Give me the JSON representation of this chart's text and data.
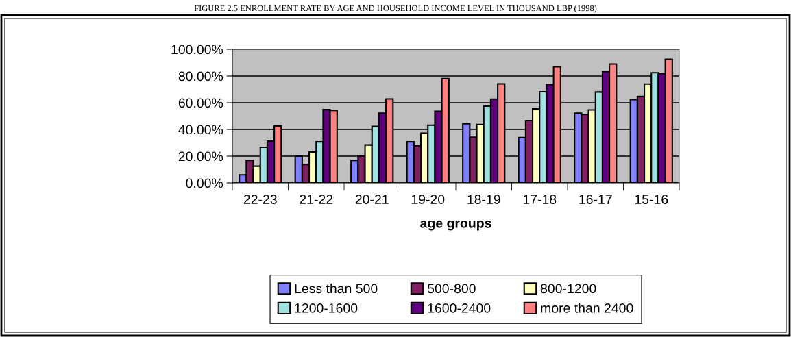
{
  "chart_data": {
    "type": "bar",
    "title": "FIGURE 2.5 ENROLLMENT RATE BY AGE AND HOUSEHOLD INCOME LEVEL IN THOUSAND LBP (1998)",
    "xlabel": "age groups",
    "categories": [
      "22-23",
      "21-22",
      "20-21",
      "19-20",
      "18-19",
      "17-18",
      "16-17",
      "15-16"
    ],
    "series": [
      {
        "name": "Less than 500",
        "color": "#8080ff",
        "values": [
          6.0,
          20.0,
          16.8,
          30.7,
          44.3,
          33.9,
          52.1,
          62.3
        ]
      },
      {
        "name": "500-800",
        "color": "#802060",
        "values": [
          16.8,
          13.7,
          20.0,
          27.7,
          34.2,
          46.7,
          51.2,
          64.7
        ]
      },
      {
        "name": "800-1200",
        "color": "#ffffc0",
        "values": [
          12.5,
          23.0,
          28.4,
          37.2,
          43.7,
          55.3,
          54.6,
          74.0
        ]
      },
      {
        "name": "1200-1600",
        "color": "#a0e0e0",
        "values": [
          26.7,
          30.7,
          42.3,
          43.2,
          57.5,
          68.2,
          68.0,
          82.4
        ]
      },
      {
        "name": "1600-2400",
        "color": "#600080",
        "values": [
          31.2,
          54.8,
          52.2,
          53.6,
          62.7,
          73.6,
          83.2,
          81.7
        ]
      },
      {
        "name": "more than 2400",
        "color": "#ff8080",
        "values": [
          42.5,
          54.3,
          62.8,
          78.1,
          74.1,
          87.0,
          89.0,
          92.6
        ]
      }
    ],
    "ylim": [
      0,
      100
    ],
    "yticks": [
      {
        "value": 0,
        "label": "0.00%"
      },
      {
        "value": 20,
        "label": "20.00%"
      },
      {
        "value": 40,
        "label": "40.00%"
      },
      {
        "value": 60,
        "label": "60.00%"
      },
      {
        "value": 80,
        "label": "80.00%"
      },
      {
        "value": 100,
        "label": "100.00%"
      }
    ],
    "grid": "y",
    "legend": "bottom"
  }
}
